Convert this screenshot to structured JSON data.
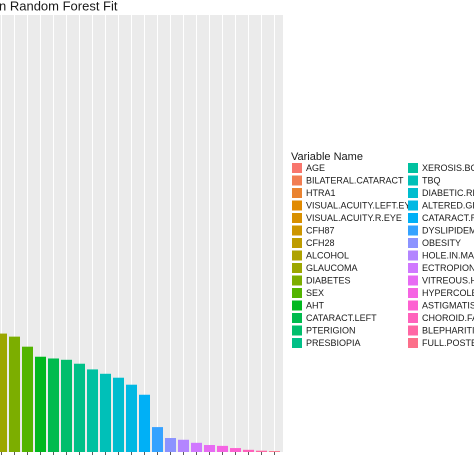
{
  "chart_data": {
    "type": "bar",
    "title": "n Random Forest Fit",
    "legend_title": "Variable Name",
    "categories": [
      "AGE",
      "BILATERAL.CATARACT",
      "HTRA1",
      "VISUAL.ACUITY.LEFT.EYE",
      "VISUAL.ACUITY.R.EYE",
      "CFH87",
      "CFH28",
      "ALCOHOL",
      "GLAUCOMA",
      "DIABETES",
      "SEX",
      "AHT",
      "CATARACT.LEFT",
      "PTERIGION",
      "PRESBIOPIA",
      "XEROSIS.BOT",
      "TBQ",
      "DIABETIC.RE",
      "ALTERED.GLU",
      "CATARACT.RI",
      "DYSLIPIDEMI",
      "OBESITY",
      "HOLE.IN.MAC",
      "ECTROPION",
      "VITREOUS.HE",
      "HYPERCOLES",
      "ASTIGMATISM",
      "CHOROID.FAI",
      "BLEPHARITIS",
      "FULL.POSTEF"
    ],
    "colors": [
      "#F8766D",
      "#F27D52",
      "#EA8331",
      "#E18A00",
      "#D89000",
      "#CD9600",
      "#BE9C00",
      "#AEA200",
      "#9CA700",
      "#7CAE00",
      "#53B400",
      "#00B81F",
      "#00BB4E",
      "#00BE6C",
      "#00C087",
      "#00C1A0",
      "#00C0B8",
      "#00BDCE",
      "#00B8E3",
      "#00B0F6",
      "#35A2FF",
      "#8B93FF",
      "#B385FF",
      "#D078FF",
      "#E76BF3",
      "#F564E3",
      "#FD61D1",
      "#FF62BC",
      "#FF67A4",
      "#FC6F8A"
    ],
    "values": [
      null,
      null,
      null,
      null,
      null,
      null,
      null,
      null,
      27.1,
      26.4,
      24.1,
      21.8,
      21.4,
      21.1,
      20.2,
      18.9,
      17.9,
      17.0,
      15.4,
      13.1,
      5.7,
      3.2,
      2.8,
      2.1,
      1.6,
      1.4,
      0.9,
      0.5,
      0.3,
      0.2
    ],
    "ylim": [
      0,
      100
    ],
    "legend": "right"
  }
}
